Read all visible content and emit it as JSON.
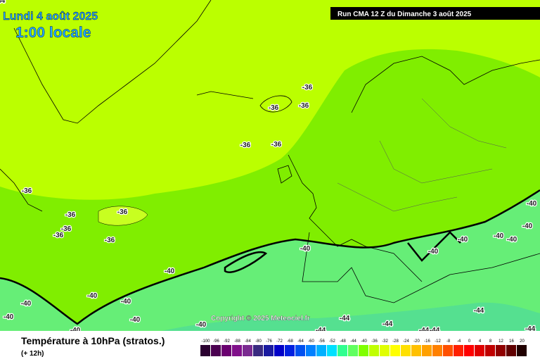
{
  "header": {
    "date": "Lundi 4 août 2025",
    "time": "1:00 locale",
    "run": "Run CMA 12 Z du Dimanche 3 août 2025"
  },
  "copyright": "Copyright © 2025 Meteociel.fr",
  "footer": {
    "title": "Température à 10hPa (stratos.)",
    "subtitle": "(+ 12h)"
  },
  "contour_labels": [
    "-36",
    "-36",
    "-36",
    "-36",
    "-36",
    "-36",
    "-36",
    "-36",
    "-36",
    "-36",
    "-36",
    "-40",
    "-40",
    "-40",
    "-40",
    "-40",
    "-40",
    "-40",
    "-40",
    "-40",
    "-40",
    "-40",
    "-40",
    "-40",
    "-40",
    "-40",
    "-44",
    "-44",
    "-44",
    "-44",
    "-44",
    "-44",
    "-44",
    "-44"
  ],
  "legend": {
    "labels": [
      "-100",
      "-96",
      "-92",
      "-88",
      "-84",
      "-80",
      "-76",
      "-72",
      "-68",
      "-64",
      "-60",
      "-56",
      "-52",
      "-48",
      "-44",
      "-40",
      "-36",
      "-32",
      "-28",
      "-24",
      "-20",
      "-16",
      "-12",
      "-8",
      "-4",
      "0",
      "4",
      "8",
      "12",
      "16",
      "20"
    ],
    "colors": [
      "#2a0030",
      "#4a0050",
      "#6a0070",
      "#80108a",
      "#7a2a90",
      "#3a2a80",
      "#1a1aa0",
      "#0000c8",
      "#0020e0",
      "#0050f0",
      "#0080ff",
      "#00b0ff",
      "#00e0ff",
      "#30ff90",
      "#60ff60",
      "#80ff00",
      "#c0ff00",
      "#e0ff00",
      "#ffff00",
      "#ffe000",
      "#ffc000",
      "#ffa000",
      "#ff8000",
      "#ff5000",
      "#ff2000",
      "#ff0000",
      "#e00000",
      "#c00000",
      "#900000",
      "#600000",
      "#200000"
    ]
  }
}
